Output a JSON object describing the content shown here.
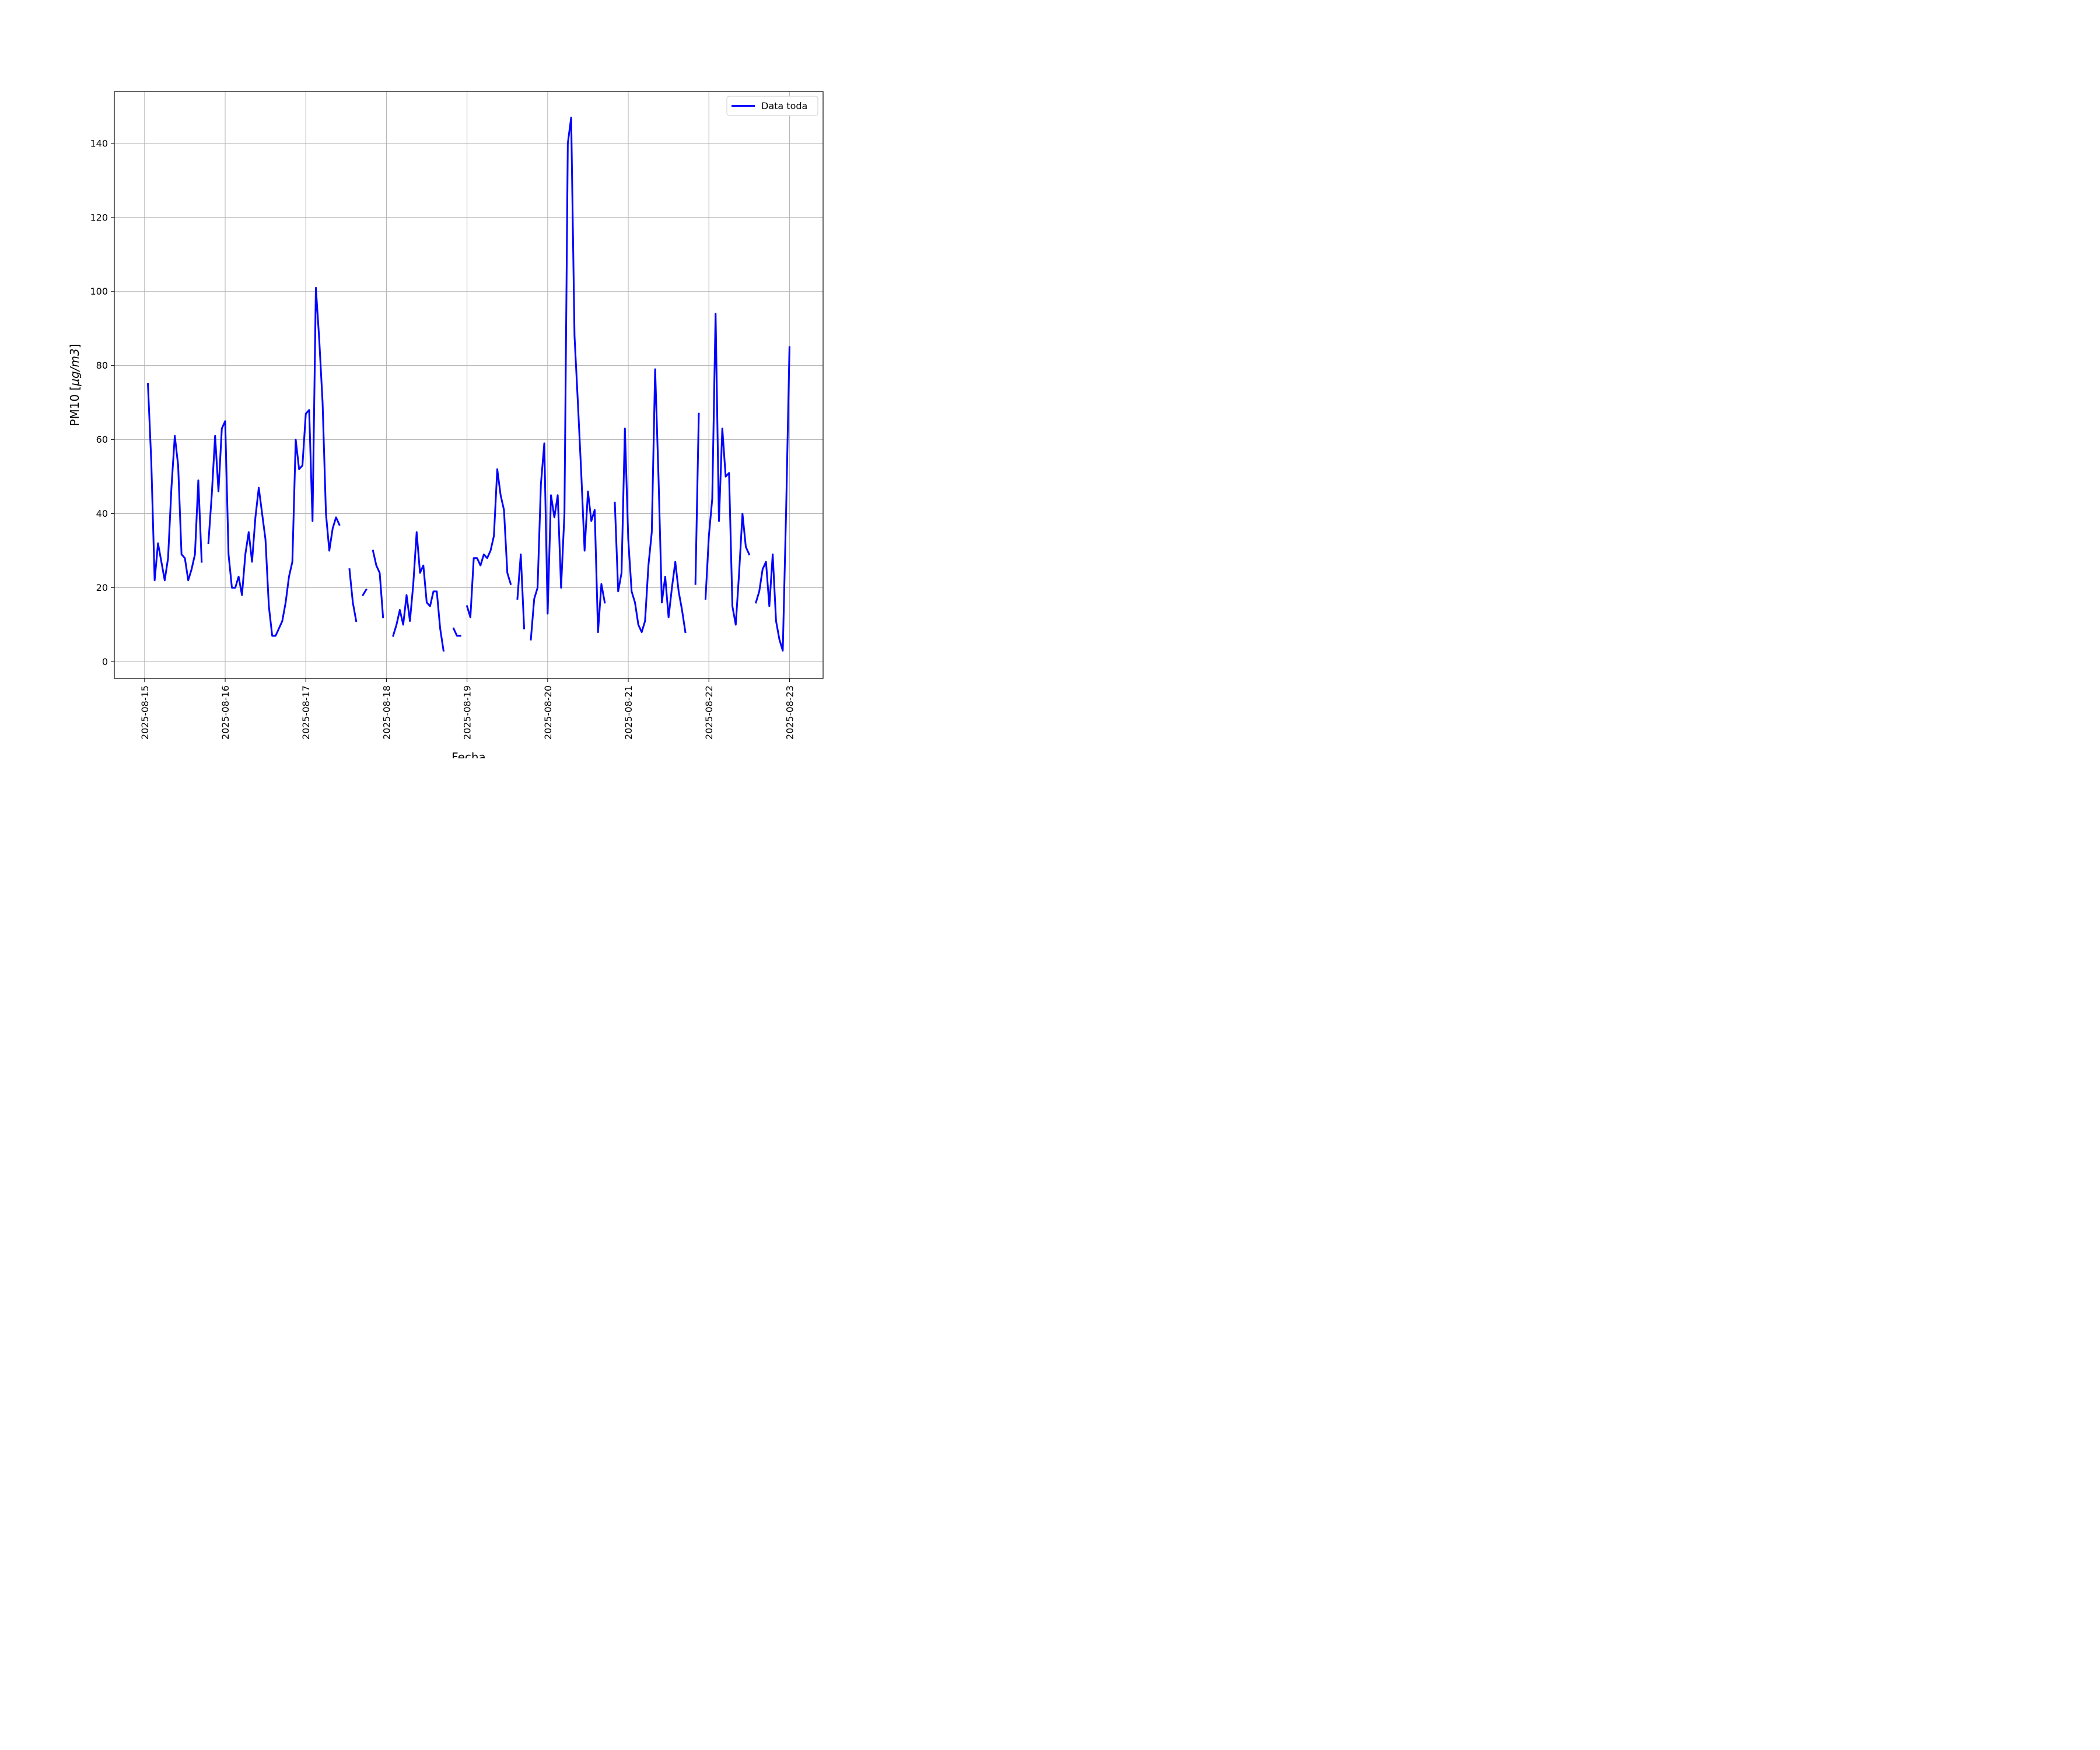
{
  "chart_data": {
    "type": "line",
    "xlabel": "Fecha",
    "ylabel_text": "PM10 [",
    "ylabel_math": "μg/m3",
    "ylabel_close": "]",
    "xlim": [
      "2025-08-14T15:00",
      "2025-08-23T10:00"
    ],
    "ylim": [
      -4.5,
      154
    ],
    "grid": true,
    "legend_position": "top-right",
    "x_ticks": [
      "2025-08-15",
      "2025-08-16",
      "2025-08-17",
      "2025-08-18",
      "2025-08-19",
      "2025-08-20",
      "2025-08-21",
      "2025-08-22",
      "2025-08-23"
    ],
    "y_ticks": [
      0,
      20,
      40,
      60,
      80,
      100,
      120,
      140
    ],
    "color": "#0000ff",
    "series": [
      {
        "name": "Data toda",
        "segments": [
          [
            [
              "2025-08-15T01:00",
              75
            ],
            [
              "2025-08-15T02:00",
              54
            ],
            [
              "2025-08-15T03:00",
              22
            ],
            [
              "2025-08-15T04:00",
              32
            ],
            [
              "2025-08-15T05:00",
              27
            ],
            [
              "2025-08-15T06:00",
              22
            ],
            [
              "2025-08-15T07:00",
              28
            ],
            [
              "2025-08-15T08:00",
              47
            ],
            [
              "2025-08-15T09:00",
              61
            ],
            [
              "2025-08-15T10:00",
              53
            ],
            [
              "2025-08-15T11:00",
              29
            ],
            [
              "2025-08-15T12:00",
              28
            ],
            [
              "2025-08-15T13:00",
              22
            ],
            [
              "2025-08-15T14:00",
              25
            ],
            [
              "2025-08-15T15:00",
              29
            ],
            [
              "2025-08-15T16:00",
              49
            ],
            [
              "2025-08-15T17:00",
              27
            ]
          ],
          [
            [
              "2025-08-15T19:00",
              32
            ],
            [
              "2025-08-15T20:00",
              45
            ],
            [
              "2025-08-15T21:00",
              61
            ],
            [
              "2025-08-15T22:00",
              46
            ],
            [
              "2025-08-15T23:00",
              63
            ],
            [
              "2025-08-16T00:00",
              65
            ],
            [
              "2025-08-16T01:00",
              29
            ],
            [
              "2025-08-16T02:00",
              20
            ],
            [
              "2025-08-16T03:00",
              20
            ],
            [
              "2025-08-16T04:00",
              23
            ],
            [
              "2025-08-16T05:00",
              18
            ],
            [
              "2025-08-16T06:00",
              29
            ],
            [
              "2025-08-16T07:00",
              35
            ],
            [
              "2025-08-16T08:00",
              27
            ],
            [
              "2025-08-16T09:00",
              39
            ],
            [
              "2025-08-16T10:00",
              47
            ],
            [
              "2025-08-16T11:00",
              40
            ],
            [
              "2025-08-16T12:00",
              33
            ],
            [
              "2025-08-16T13:00",
              15
            ],
            [
              "2025-08-16T14:00",
              7
            ],
            [
              "2025-08-16T15:00",
              7
            ],
            [
              "2025-08-16T16:00",
              9
            ],
            [
              "2025-08-16T17:00",
              11
            ],
            [
              "2025-08-16T18:00",
              16
            ],
            [
              "2025-08-16T19:00",
              23
            ],
            [
              "2025-08-16T20:00",
              27
            ],
            [
              "2025-08-16T21:00",
              60
            ],
            [
              "2025-08-16T22:00",
              52
            ],
            [
              "2025-08-16T23:00",
              53
            ],
            [
              "2025-08-17T00:00",
              67
            ],
            [
              "2025-08-17T01:00",
              68
            ],
            [
              "2025-08-17T02:00",
              38
            ],
            [
              "2025-08-17T03:00",
              101
            ],
            [
              "2025-08-17T04:00",
              87
            ],
            [
              "2025-08-17T05:00",
              70
            ],
            [
              "2025-08-17T06:00",
              40
            ],
            [
              "2025-08-17T07:00",
              30
            ],
            [
              "2025-08-17T08:00",
              36
            ],
            [
              "2025-08-17T09:00",
              39
            ],
            [
              "2025-08-17T10:00",
              37
            ]
          ],
          [
            [
              "2025-08-17T13:00",
              25
            ],
            [
              "2025-08-17T14:00",
              16
            ],
            [
              "2025-08-17T15:00",
              11
            ]
          ],
          [
            [
              "2025-08-17T17:00",
              18
            ],
            [
              "2025-08-17T18:00",
              19.5
            ]
          ],
          [
            [
              "2025-08-17T20:00",
              30
            ],
            [
              "2025-08-17T21:00",
              26
            ],
            [
              "2025-08-17T22:00",
              24
            ],
            [
              "2025-08-17T23:00",
              12
            ]
          ],
          [
            [
              "2025-08-18T02:00",
              7
            ],
            [
              "2025-08-18T03:00",
              10
            ],
            [
              "2025-08-18T04:00",
              14
            ],
            [
              "2025-08-18T05:00",
              10
            ],
            [
              "2025-08-18T06:00",
              18
            ],
            [
              "2025-08-18T07:00",
              11
            ],
            [
              "2025-08-18T08:00",
              21
            ],
            [
              "2025-08-18T09:00",
              35
            ],
            [
              "2025-08-18T10:00",
              24
            ],
            [
              "2025-08-18T11:00",
              26
            ],
            [
              "2025-08-18T12:00",
              16
            ],
            [
              "2025-08-18T13:00",
              15
            ],
            [
              "2025-08-18T14:00",
              19
            ],
            [
              "2025-08-18T15:00",
              19
            ],
            [
              "2025-08-18T16:00",
              9
            ],
            [
              "2025-08-18T17:00",
              3
            ]
          ],
          [
            [
              "2025-08-18T20:00",
              9
            ],
            [
              "2025-08-18T21:00",
              7
            ],
            [
              "2025-08-18T22:00",
              7
            ]
          ],
          [
            [
              "2025-08-19T00:00",
              15
            ],
            [
              "2025-08-19T01:00",
              12
            ],
            [
              "2025-08-19T02:00",
              28
            ],
            [
              "2025-08-19T03:00",
              28
            ],
            [
              "2025-08-19T04:00",
              26
            ],
            [
              "2025-08-19T05:00",
              29
            ],
            [
              "2025-08-19T06:00",
              28
            ],
            [
              "2025-08-19T07:00",
              30
            ],
            [
              "2025-08-19T08:00",
              34
            ],
            [
              "2025-08-19T09:00",
              52
            ],
            [
              "2025-08-19T10:00",
              45
            ],
            [
              "2025-08-19T11:00",
              41
            ],
            [
              "2025-08-19T12:00",
              24
            ],
            [
              "2025-08-19T13:00",
              21
            ]
          ],
          [
            [
              "2025-08-19T15:00",
              17
            ],
            [
              "2025-08-19T16:00",
              29
            ],
            [
              "2025-08-19T17:00",
              9
            ]
          ],
          [
            [
              "2025-08-19T19:00",
              6
            ],
            [
              "2025-08-19T20:00",
              17
            ],
            [
              "2025-08-19T21:00",
              20
            ],
            [
              "2025-08-19T22:00",
              48
            ],
            [
              "2025-08-19T23:00",
              59
            ],
            [
              "2025-08-20T00:00",
              13
            ],
            [
              "2025-08-20T01:00",
              45
            ],
            [
              "2025-08-20T02:00",
              39
            ],
            [
              "2025-08-20T03:00",
              45
            ],
            [
              "2025-08-20T04:00",
              20
            ],
            [
              "2025-08-20T05:00",
              40
            ],
            [
              "2025-08-20T06:00",
              140
            ],
            [
              "2025-08-20T07:00",
              147
            ],
            [
              "2025-08-20T08:00",
              88
            ],
            [
              "2025-08-20T09:00",
              70
            ],
            [
              "2025-08-20T10:00",
              51
            ],
            [
              "2025-08-20T11:00",
              30
            ],
            [
              "2025-08-20T12:00",
              46
            ],
            [
              "2025-08-20T13:00",
              38
            ],
            [
              "2025-08-20T14:00",
              41
            ],
            [
              "2025-08-20T15:00",
              8
            ],
            [
              "2025-08-20T16:00",
              21
            ],
            [
              "2025-08-20T17:00",
              16
            ]
          ],
          [
            [
              "2025-08-20T20:00",
              43
            ],
            [
              "2025-08-20T21:00",
              19
            ],
            [
              "2025-08-20T22:00",
              24
            ],
            [
              "2025-08-20T23:00",
              63
            ],
            [
              "2025-08-21T00:00",
              33
            ],
            [
              "2025-08-21T01:00",
              19
            ],
            [
              "2025-08-21T02:00",
              16
            ],
            [
              "2025-08-21T03:00",
              10
            ],
            [
              "2025-08-21T04:00",
              8
            ],
            [
              "2025-08-21T05:00",
              11
            ],
            [
              "2025-08-21T06:00",
              26
            ],
            [
              "2025-08-21T07:00",
              35
            ],
            [
              "2025-08-21T08:00",
              79
            ],
            [
              "2025-08-21T09:00",
              50
            ],
            [
              "2025-08-21T10:00",
              16
            ],
            [
              "2025-08-21T11:00",
              23
            ],
            [
              "2025-08-21T12:00",
              12
            ],
            [
              "2025-08-21T13:00",
              20
            ],
            [
              "2025-08-21T14:00",
              27
            ],
            [
              "2025-08-21T15:00",
              19
            ],
            [
              "2025-08-21T16:00",
              14
            ],
            [
              "2025-08-21T17:00",
              8
            ]
          ],
          [
            [
              "2025-08-21T20:00",
              21
            ],
            [
              "2025-08-21T21:00",
              67
            ]
          ],
          [
            [
              "2025-08-21T23:00",
              17
            ],
            [
              "2025-08-22T00:00",
              34
            ],
            [
              "2025-08-22T01:00",
              44
            ],
            [
              "2025-08-22T02:00",
              94
            ],
            [
              "2025-08-22T03:00",
              38
            ],
            [
              "2025-08-22T04:00",
              63
            ],
            [
              "2025-08-22T05:00",
              50
            ],
            [
              "2025-08-22T06:00",
              51
            ],
            [
              "2025-08-22T07:00",
              15
            ],
            [
              "2025-08-22T08:00",
              10
            ],
            [
              "2025-08-22T09:00",
              24
            ],
            [
              "2025-08-22T10:00",
              40
            ],
            [
              "2025-08-22T11:00",
              31
            ],
            [
              "2025-08-22T12:00",
              29
            ]
          ],
          [
            [
              "2025-08-22T14:00",
              16
            ],
            [
              "2025-08-22T15:00",
              19
            ],
            [
              "2025-08-22T16:00",
              25
            ],
            [
              "2025-08-22T17:00",
              27
            ],
            [
              "2025-08-22T18:00",
              15
            ],
            [
              "2025-08-22T19:00",
              29
            ],
            [
              "2025-08-22T20:00",
              11
            ],
            [
              "2025-08-22T21:00",
              6
            ],
            [
              "2025-08-22T22:00",
              3
            ],
            [
              "2025-08-22T23:00",
              41
            ],
            [
              "2025-08-23T00:00",
              85
            ]
          ]
        ]
      }
    ]
  }
}
